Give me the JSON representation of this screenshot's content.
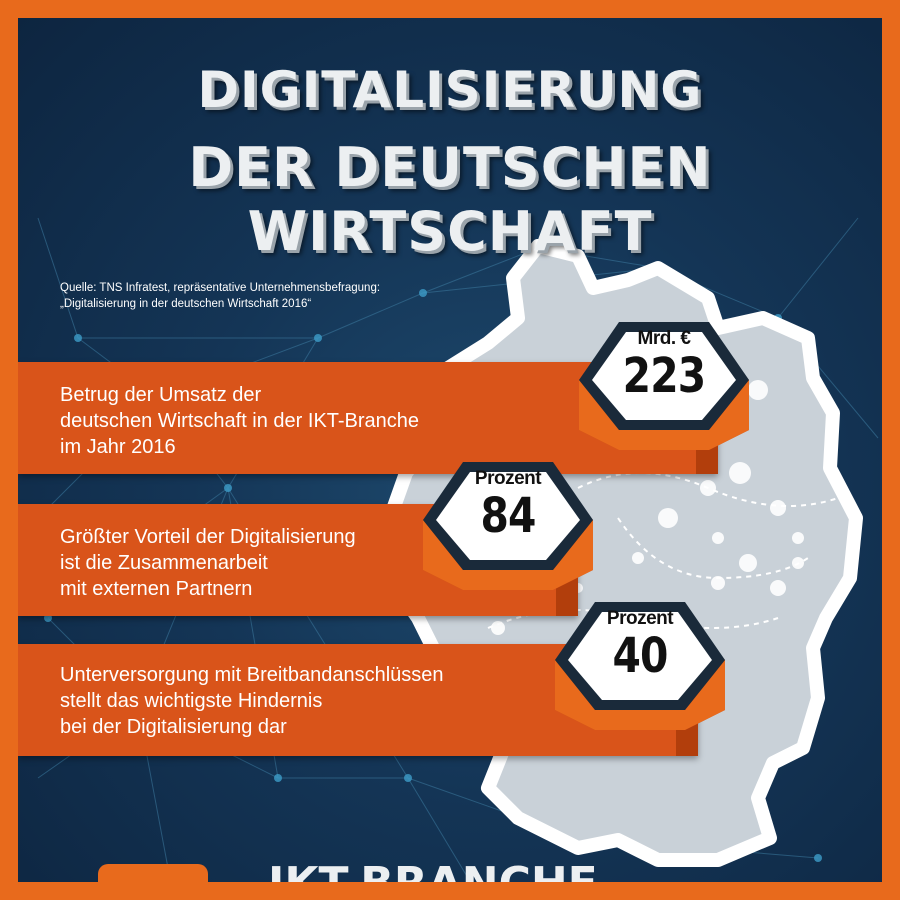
{
  "title": {
    "line1": "DIGITALISIERUNG",
    "line2": "DER DEUTSCHEN WIRTSCHAFT"
  },
  "source": {
    "line1": "Quelle: TNS Infratest, repräsentative Unternehmensbefragung:",
    "line2": "„Digitalisierung in der deutschen Wirtschaft 2016“"
  },
  "facts": [
    {
      "unit": "Mrd. €",
      "value": "223",
      "lines": [
        "Betrug der Umsatz der",
        "deutschen Wirtschaft in der IKT-Branche",
        "im Jahr 2016"
      ]
    },
    {
      "unit": "Prozent",
      "value": "84",
      "lines": [
        "Größter Vorteil der Digitalisierung",
        "ist die Zusammenarbeit",
        "mit externen Partnern"
      ]
    },
    {
      "unit": "Prozent",
      "value": "40",
      "lines": [
        "Unterversorgung mit Breitbandanschlüssen",
        "stellt das wichtigste Hindernis",
        "bei der Digitalisierung dar"
      ]
    }
  ],
  "bottom_heading": "IKT-BRANCHE",
  "colors": {
    "frame": "#e86a1c",
    "background": "#143556",
    "bar": "#d9541a",
    "bar_shade": "#b23e0c",
    "hex_outline": "#1a2a3a",
    "hex_fill": "#ffffff",
    "map_fill": "#c9d1d8",
    "map_border": "#ffffff"
  },
  "icons": [
    "germany-map-icon",
    "network-nodes-icon"
  ]
}
